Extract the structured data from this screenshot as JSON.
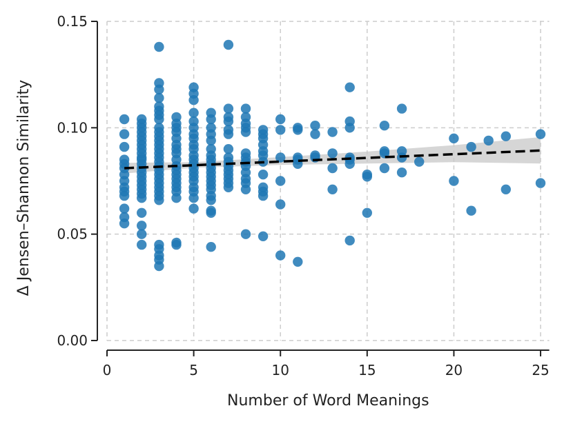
{
  "chart_data": {
    "type": "scatter",
    "title": "",
    "xlabel": "Number of Word Meanings",
    "ylabel": "Δ Jensen–Shannon Similarity",
    "xlim": [
      0,
      25.5
    ],
    "ylim": [
      0,
      0.15
    ],
    "xticks": [
      0,
      5,
      10,
      15,
      20,
      25
    ],
    "xtick_labels": [
      "0",
      "5",
      "10",
      "15",
      "20",
      "25"
    ],
    "yticks": [
      0,
      0.05,
      0.1,
      0.15
    ],
    "ytick_labels": [
      "0.00",
      "0.05",
      "0.10",
      "0.15"
    ],
    "grid": true,
    "colors": {
      "points": "#1f77b4",
      "trend": "#000000",
      "band": "#c8c8c8",
      "grid": "#cccccc",
      "axis": "#222222"
    },
    "points": [
      [
        1,
        0.104
      ],
      [
        1,
        0.097
      ],
      [
        1,
        0.091
      ],
      [
        1,
        0.085
      ],
      [
        1,
        0.083
      ],
      [
        1,
        0.081
      ],
      [
        1,
        0.078
      ],
      [
        1,
        0.075
      ],
      [
        1,
        0.072
      ],
      [
        1,
        0.07
      ],
      [
        1,
        0.068
      ],
      [
        1,
        0.062
      ],
      [
        1,
        0.058
      ],
      [
        1,
        0.055
      ],
      [
        2,
        0.104
      ],
      [
        2,
        0.102
      ],
      [
        2,
        0.1
      ],
      [
        2,
        0.098
      ],
      [
        2,
        0.096
      ],
      [
        2,
        0.094
      ],
      [
        2,
        0.092
      ],
      [
        2,
        0.09
      ],
      [
        2,
        0.088
      ],
      [
        2,
        0.086
      ],
      [
        2,
        0.085
      ],
      [
        2,
        0.083
      ],
      [
        2,
        0.081
      ],
      [
        2,
        0.079
      ],
      [
        2,
        0.077
      ],
      [
        2,
        0.075
      ],
      [
        2,
        0.073
      ],
      [
        2,
        0.071
      ],
      [
        2,
        0.069
      ],
      [
        2,
        0.067
      ],
      [
        2,
        0.06
      ],
      [
        2,
        0.054
      ],
      [
        2,
        0.05
      ],
      [
        2,
        0.045
      ],
      [
        3,
        0.138
      ],
      [
        3,
        0.121
      ],
      [
        3,
        0.118
      ],
      [
        3,
        0.114
      ],
      [
        3,
        0.11
      ],
      [
        3,
        0.108
      ],
      [
        3,
        0.106
      ],
      [
        3,
        0.104
      ],
      [
        3,
        0.1
      ],
      [
        3,
        0.098
      ],
      [
        3,
        0.096
      ],
      [
        3,
        0.094
      ],
      [
        3,
        0.092
      ],
      [
        3,
        0.09
      ],
      [
        3,
        0.088
      ],
      [
        3,
        0.086
      ],
      [
        3,
        0.084
      ],
      [
        3,
        0.082
      ],
      [
        3,
        0.08
      ],
      [
        3,
        0.078
      ],
      [
        3,
        0.076
      ],
      [
        3,
        0.074
      ],
      [
        3,
        0.072
      ],
      [
        3,
        0.07
      ],
      [
        3,
        0.068
      ],
      [
        3,
        0.066
      ],
      [
        3,
        0.045
      ],
      [
        3,
        0.043
      ],
      [
        3,
        0.04
      ],
      [
        3,
        0.038
      ],
      [
        3,
        0.035
      ],
      [
        4,
        0.105
      ],
      [
        4,
        0.102
      ],
      [
        4,
        0.1
      ],
      [
        4,
        0.098
      ],
      [
        4,
        0.095
      ],
      [
        4,
        0.092
      ],
      [
        4,
        0.09
      ],
      [
        4,
        0.088
      ],
      [
        4,
        0.085
      ],
      [
        4,
        0.082
      ],
      [
        4,
        0.08
      ],
      [
        4,
        0.078
      ],
      [
        4,
        0.076
      ],
      [
        4,
        0.074
      ],
      [
        4,
        0.072
      ],
      [
        4,
        0.07
      ],
      [
        4,
        0.067
      ],
      [
        4,
        0.046
      ],
      [
        4,
        0.045
      ],
      [
        5,
        0.119
      ],
      [
        5,
        0.116
      ],
      [
        5,
        0.113
      ],
      [
        5,
        0.107
      ],
      [
        5,
        0.103
      ],
      [
        5,
        0.1
      ],
      [
        5,
        0.097
      ],
      [
        5,
        0.095
      ],
      [
        5,
        0.092
      ],
      [
        5,
        0.09
      ],
      [
        5,
        0.087
      ],
      [
        5,
        0.085
      ],
      [
        5,
        0.083
      ],
      [
        5,
        0.081
      ],
      [
        5,
        0.079
      ],
      [
        5,
        0.077
      ],
      [
        5,
        0.075
      ],
      [
        5,
        0.072
      ],
      [
        5,
        0.07
      ],
      [
        5,
        0.067
      ],
      [
        5,
        0.062
      ],
      [
        6,
        0.107
      ],
      [
        6,
        0.104
      ],
      [
        6,
        0.1
      ],
      [
        6,
        0.097
      ],
      [
        6,
        0.094
      ],
      [
        6,
        0.09
      ],
      [
        6,
        0.087
      ],
      [
        6,
        0.085
      ],
      [
        6,
        0.083
      ],
      [
        6,
        0.081
      ],
      [
        6,
        0.079
      ],
      [
        6,
        0.077
      ],
      [
        6,
        0.075
      ],
      [
        6,
        0.073
      ],
      [
        6,
        0.071
      ],
      [
        6,
        0.068
      ],
      [
        6,
        0.066
      ],
      [
        6,
        0.061
      ],
      [
        6,
        0.06
      ],
      [
        6,
        0.044
      ],
      [
        7,
        0.139
      ],
      [
        7,
        0.109
      ],
      [
        7,
        0.105
      ],
      [
        7,
        0.103
      ],
      [
        7,
        0.099
      ],
      [
        7,
        0.097
      ],
      [
        7,
        0.09
      ],
      [
        7,
        0.086
      ],
      [
        7,
        0.084
      ],
      [
        7,
        0.082
      ],
      [
        7,
        0.08
      ],
      [
        7,
        0.078
      ],
      [
        7,
        0.076
      ],
      [
        7,
        0.074
      ],
      [
        7,
        0.072
      ],
      [
        8,
        0.109
      ],
      [
        8,
        0.105
      ],
      [
        8,
        0.102
      ],
      [
        8,
        0.1
      ],
      [
        8,
        0.098
      ],
      [
        8,
        0.088
      ],
      [
        8,
        0.086
      ],
      [
        8,
        0.084
      ],
      [
        8,
        0.082
      ],
      [
        8,
        0.079
      ],
      [
        8,
        0.076
      ],
      [
        8,
        0.074
      ],
      [
        8,
        0.071
      ],
      [
        8,
        0.05
      ],
      [
        9,
        0.099
      ],
      [
        9,
        0.097
      ],
      [
        9,
        0.095
      ],
      [
        9,
        0.092
      ],
      [
        9,
        0.089
      ],
      [
        9,
        0.087
      ],
      [
        9,
        0.084
      ],
      [
        9,
        0.078
      ],
      [
        9,
        0.072
      ],
      [
        9,
        0.07
      ],
      [
        9,
        0.068
      ],
      [
        9,
        0.049
      ],
      [
        10,
        0.104
      ],
      [
        10,
        0.099
      ],
      [
        10,
        0.086
      ],
      [
        10,
        0.075
      ],
      [
        10,
        0.064
      ],
      [
        10,
        0.04
      ],
      [
        11,
        0.1
      ],
      [
        11,
        0.099
      ],
      [
        11,
        0.086
      ],
      [
        11,
        0.085
      ],
      [
        11,
        0.083
      ],
      [
        11,
        0.037
      ],
      [
        12,
        0.101
      ],
      [
        12,
        0.097
      ],
      [
        12,
        0.087
      ],
      [
        12,
        0.086
      ],
      [
        13,
        0.098
      ],
      [
        13,
        0.088
      ],
      [
        13,
        0.081
      ],
      [
        13,
        0.071
      ],
      [
        14,
        0.119
      ],
      [
        14,
        0.103
      ],
      [
        14,
        0.1
      ],
      [
        14,
        0.086
      ],
      [
        14,
        0.085
      ],
      [
        14,
        0.083
      ],
      [
        14,
        0.047
      ],
      [
        15,
        0.078
      ],
      [
        15,
        0.077
      ],
      [
        15,
        0.06
      ],
      [
        16,
        0.101
      ],
      [
        16,
        0.089
      ],
      [
        16,
        0.088
      ],
      [
        16,
        0.081
      ],
      [
        17,
        0.109
      ],
      [
        17,
        0.089
      ],
      [
        17,
        0.086
      ],
      [
        17,
        0.079
      ],
      [
        18,
        0.084
      ],
      [
        20,
        0.095
      ],
      [
        20,
        0.075
      ],
      [
        21,
        0.091
      ],
      [
        21,
        0.061
      ],
      [
        22,
        0.094
      ],
      [
        23,
        0.096
      ],
      [
        23,
        0.071
      ],
      [
        25,
        0.097
      ],
      [
        25,
        0.074
      ]
    ],
    "regression": {
      "x": [
        1,
        25
      ],
      "y": [
        0.081,
        0.0893
      ]
    },
    "confidence_band": {
      "x": [
        1,
        5,
        10,
        15,
        20,
        25
      ],
      "upper": [
        0.0835,
        0.0838,
        0.0862,
        0.0888,
        0.0918,
        0.0956
      ],
      "lower": [
        0.0785,
        0.0812,
        0.0825,
        0.0832,
        0.0838,
        0.0832
      ]
    }
  }
}
